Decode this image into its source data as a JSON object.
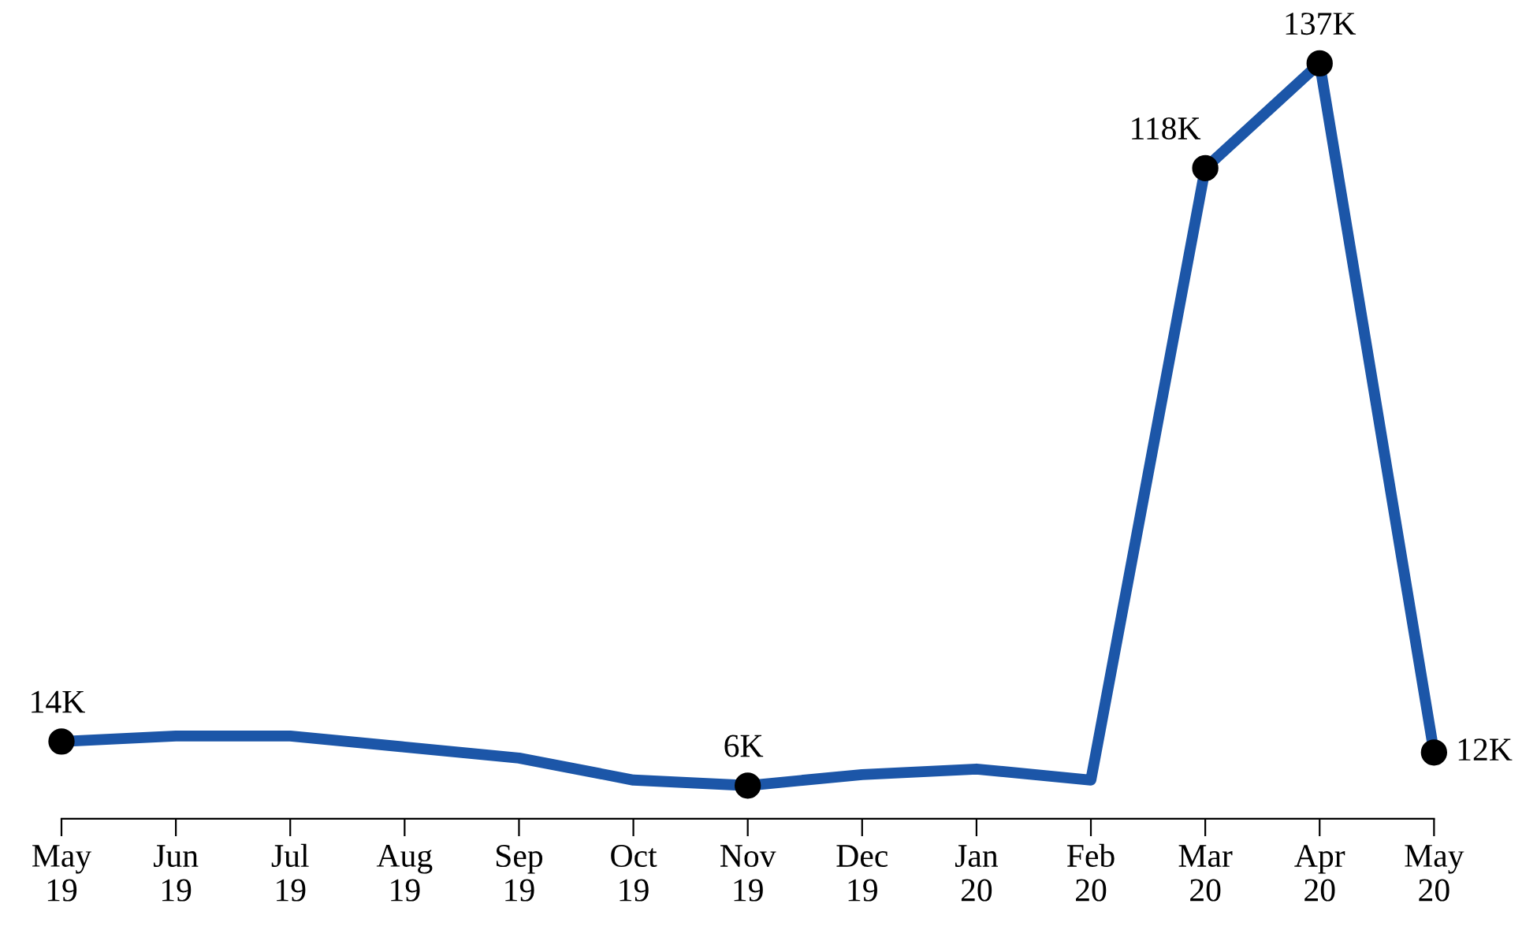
{
  "chart_data": {
    "type": "line",
    "categories": [
      "May\n19",
      "Jun\n19",
      "Jul\n19",
      "Aug\n19",
      "Sep\n19",
      "Oct\n19",
      "Nov\n19",
      "Dec\n19",
      "Jan\n20",
      "Feb\n20",
      "Mar\n20",
      "Apr\n20",
      "May\n20"
    ],
    "series": [
      {
        "color": "#1c56a8",
        "values": [
          14,
          15,
          15,
          13,
          11,
          7,
          6,
          8,
          9,
          7,
          118,
          137,
          12
        ],
        "value_labels": [
          "14K",
          null,
          null,
          null,
          null,
          null,
          "6K",
          null,
          null,
          null,
          "118K",
          "137K",
          "12K"
        ]
      }
    ],
    "tick_labels": "x",
    "grid": false,
    "legend": false
  }
}
